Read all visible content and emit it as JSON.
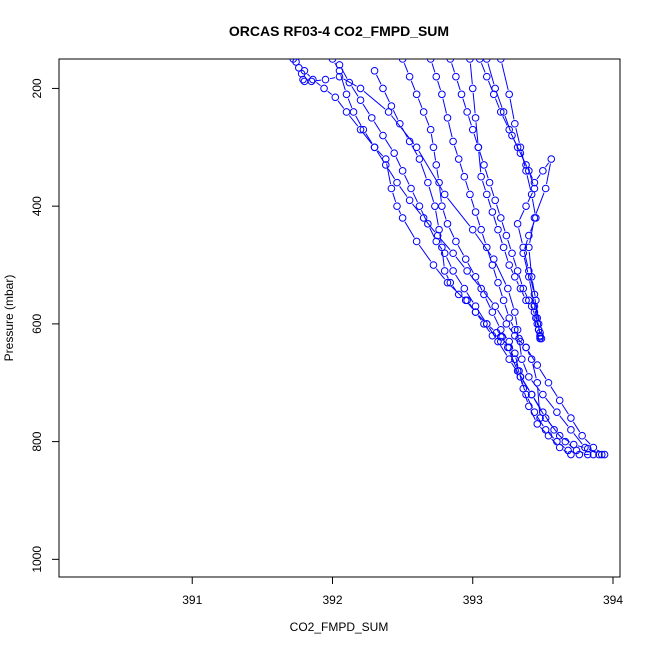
{
  "chart_data": {
    "type": "line",
    "title": "ORCAS RF03-4 CO2_FMPD_SUM",
    "xlabel": "CO2_FMPD_SUM",
    "ylabel": "Pressure (mbar)",
    "xlim": [
      390.05,
      394.05
    ],
    "ylim": [
      1030,
      150
    ],
    "y_reversed": true,
    "x_ticks": [
      391,
      392,
      393,
      394
    ],
    "y_ticks": [
      200,
      400,
      600,
      800,
      1000
    ],
    "line_color": "#0000ff",
    "marker": "open-circle",
    "series": [
      {
        "x": [
          391.72,
          391.74,
          391.76,
          391.78,
          391.79,
          391.8,
          391.85,
          391.95,
          392.05,
          392.2,
          392.4,
          392.6,
          392.8,
          393.0,
          393.15,
          393.25,
          393.3,
          393.32,
          393.33,
          393.35,
          393.4,
          393.5,
          393.6,
          393.7,
          393.8,
          393.92
        ],
        "y": [
          150,
          155,
          165,
          175,
          185,
          188,
          188,
          185,
          180,
          200,
          240,
          300,
          380,
          440,
          490,
          540,
          580,
          610,
          625,
          660,
          690,
          720,
          750,
          780,
          810,
          822
        ]
      },
      {
        "x": [
          391.8,
          391.86,
          391.94,
          392.02,
          392.1,
          392.2,
          392.3,
          392.38,
          392.46,
          392.55,
          392.65,
          392.75,
          392.86,
          392.96,
          393.06,
          393.16,
          393.24,
          393.3,
          393.38,
          393.46,
          393.54,
          393.62,
          393.7,
          393.78,
          393.86,
          393.94
        ],
        "y": [
          170,
          185,
          200,
          215,
          240,
          270,
          300,
          330,
          360,
          390,
          420,
          450,
          480,
          510,
          540,
          570,
          600,
          620,
          640,
          670,
          700,
          730,
          760,
          790,
          810,
          822
        ]
      },
      {
        "x": [
          392.0,
          392.05,
          392.1,
          392.15,
          392.22,
          392.3,
          392.38,
          392.42,
          392.46,
          392.5,
          392.6,
          392.72,
          392.82,
          392.95,
          393.02,
          393.1,
          393.17,
          393.2,
          393.21,
          393.25,
          393.32,
          393.42,
          393.52,
          393.62,
          393.72,
          393.82,
          393.9
        ],
        "y": [
          150,
          170,
          210,
          240,
          270,
          300,
          320,
          370,
          400,
          420,
          460,
          500,
          530,
          560,
          580,
          600,
          615,
          622,
          622,
          640,
          680,
          720,
          760,
          790,
          805,
          812,
          822
        ]
      },
      {
        "x": [
          392.05,
          392.12,
          392.2,
          392.28,
          392.36,
          392.44,
          392.5,
          392.56,
          392.62,
          392.68,
          392.74,
          392.8,
          392.86,
          392.94,
          393.02,
          393.1,
          393.18,
          393.26,
          393.34,
          393.42,
          393.5,
          393.58,
          393.66,
          393.74,
          393.82
        ],
        "y": [
          160,
          190,
          220,
          250,
          280,
          310,
          340,
          370,
          400,
          430,
          460,
          480,
          510,
          540,
          570,
          600,
          630,
          660,
          690,
          720,
          750,
          780,
          800,
          815,
          822
        ]
      },
      {
        "x": [
          392.3,
          392.36,
          392.42,
          392.48,
          392.55,
          392.62,
          392.68,
          392.73,
          392.76,
          392.78,
          392.8,
          392.84,
          392.9,
          392.96,
          393.02,
          393.08,
          393.14,
          393.2,
          393.26,
          393.3,
          393.34,
          393.38,
          393.44,
          393.52,
          393.6,
          393.68,
          393.76,
          393.86
        ],
        "y": [
          170,
          200,
          230,
          260,
          290,
          320,
          360,
          400,
          440,
          470,
          510,
          530,
          550,
          560,
          580,
          600,
          620,
          630,
          640,
          660,
          690,
          720,
          750,
          780,
          800,
          815,
          822,
          822
        ]
      },
      {
        "x": [
          392.5,
          392.55,
          392.6,
          392.65,
          392.7,
          392.72,
          392.74,
          392.76,
          392.78,
          392.82,
          392.88,
          392.95,
          393.02,
          393.08,
          393.14,
          393.2,
          393.26,
          393.3,
          393.33,
          393.36,
          393.4,
          393.46,
          393.54,
          393.62,
          393.7
        ],
        "y": [
          150,
          180,
          210,
          240,
          270,
          300,
          330,
          360,
          400,
          430,
          460,
          490,
          520,
          550,
          580,
          610,
          630,
          650,
          680,
          710,
          740,
          770,
          790,
          810,
          822
        ]
      },
      {
        "x": [
          392.7,
          392.74,
          392.78,
          392.82,
          392.86,
          392.9,
          392.94,
          392.98,
          393.02,
          393.06,
          393.1,
          393.14,
          393.18,
          393.22,
          393.26,
          393.3,
          393.34,
          393.38,
          393.42,
          393.46,
          393.48
        ],
        "y": [
          150,
          180,
          210,
          250,
          290,
          320,
          350,
          380,
          410,
          440,
          470,
          500,
          530,
          560,
          590,
          610,
          630,
          640,
          660,
          700,
          760
        ]
      },
      {
        "x": [
          392.84,
          392.88,
          392.92,
          392.96,
          393.0,
          393.04,
          393.08,
          393.12,
          393.16,
          393.2,
          393.24,
          393.28,
          393.32,
          393.36,
          393.4,
          393.44,
          393.46,
          393.48,
          393.49
        ],
        "y": [
          150,
          180,
          210,
          240,
          270,
          300,
          330,
          360,
          390,
          420,
          450,
          480,
          510,
          540,
          560,
          580,
          600,
          615,
          625
        ]
      },
      {
        "x": [
          392.98,
          393.0,
          393.02,
          393.04,
          393.06,
          393.1,
          393.14,
          393.18,
          393.22,
          393.26,
          393.3,
          393.34,
          393.38,
          393.42,
          393.45,
          393.47,
          393.48
        ],
        "y": [
          150,
          200,
          250,
          300,
          350,
          380,
          410,
          440,
          470,
          500,
          520,
          540,
          560,
          570,
          590,
          610,
          622
        ]
      },
      {
        "x": [
          393.05,
          393.1,
          393.15,
          393.2,
          393.26,
          393.32,
          393.38,
          393.44,
          393.5,
          393.56,
          393.52,
          393.44,
          393.4,
          393.42,
          393.45,
          393.47,
          393.48
        ],
        "y": [
          150,
          180,
          210,
          240,
          270,
          300,
          330,
          360,
          340,
          320,
          370,
          420,
          470,
          520,
          560,
          600,
          625
        ]
      },
      {
        "x": [
          393.1,
          393.16,
          393.22,
          393.28,
          393.34,
          393.4,
          393.44,
          393.38,
          393.32,
          393.36,
          393.4,
          393.44,
          393.46,
          393.48
        ],
        "y": [
          150,
          200,
          240,
          280,
          310,
          340,
          370,
          400,
          430,
          470,
          510,
          550,
          590,
          620
        ]
      },
      {
        "x": [
          393.2,
          393.26,
          393.3,
          393.34,
          393.38,
          393.42,
          393.45,
          393.4,
          393.36,
          393.4,
          393.44,
          393.47
        ],
        "y": [
          150,
          210,
          260,
          300,
          340,
          380,
          420,
          450,
          480,
          520,
          570,
          610
        ]
      }
    ]
  }
}
